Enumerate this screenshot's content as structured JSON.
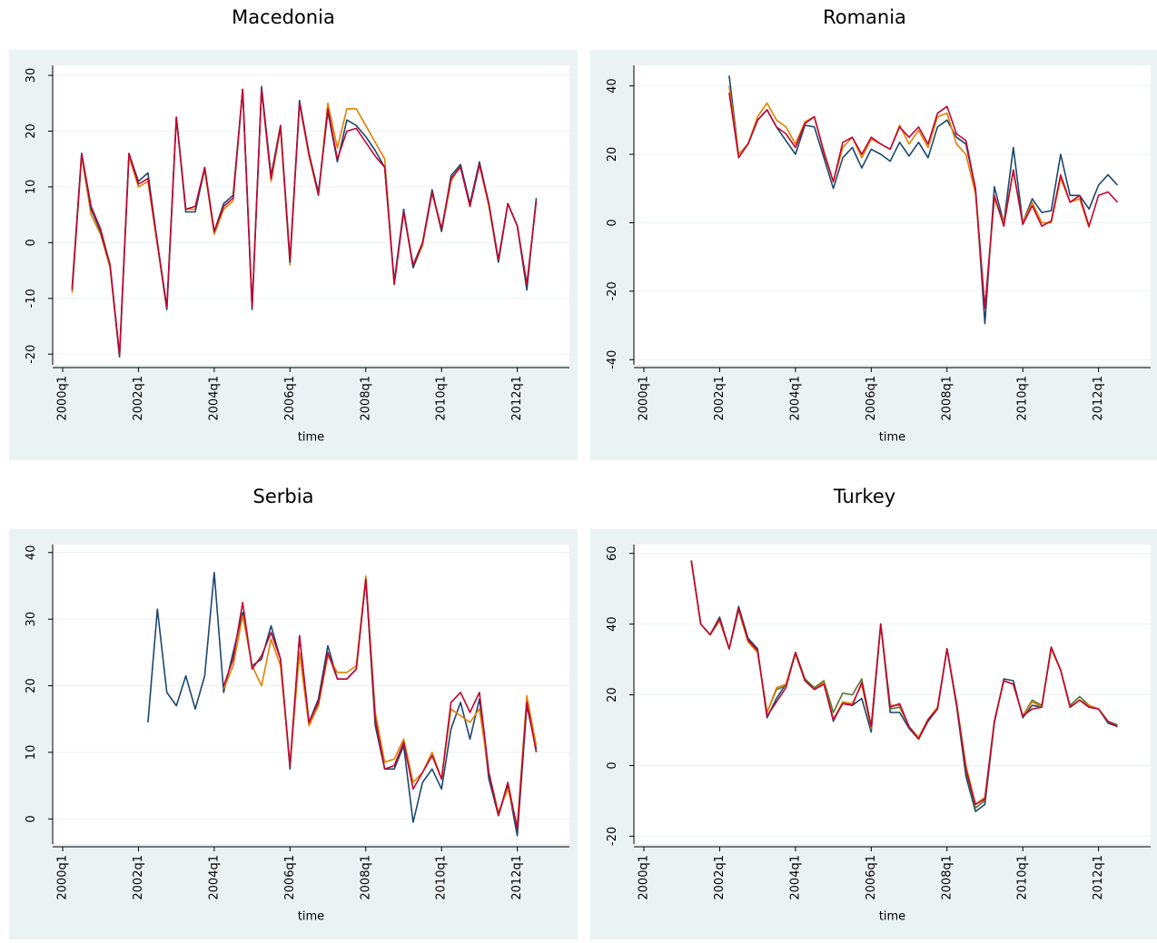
{
  "chart_data": [
    {
      "type": "line",
      "title": "Macedonia",
      "xlabel": "time",
      "x": [
        "2000q1",
        "2000q2",
        "2000q3",
        "2000q4",
        "2001q1",
        "2001q2",
        "2001q3",
        "2001q4",
        "2002q1",
        "2002q2",
        "2002q3",
        "2002q4",
        "2003q1",
        "2003q2",
        "2003q3",
        "2003q4",
        "2004q1",
        "2004q2",
        "2004q3",
        "2004q4",
        "2005q1",
        "2005q2",
        "2005q3",
        "2005q4",
        "2006q1",
        "2006q2",
        "2006q3",
        "2006q4",
        "2007q1",
        "2007q2",
        "2007q3",
        "2007q4",
        "2008q1",
        "2008q2",
        "2008q3",
        "2008q4",
        "2009q1",
        "2009q2",
        "2009q3",
        "2009q4",
        "2010q1",
        "2010q2",
        "2010q3",
        "2010q4",
        "2011q1",
        "2011q2",
        "2011q3",
        "2011q4",
        "2012q1",
        "2012q2",
        "2012q3"
      ],
      "xticks": [
        "2000q1",
        "2002q1",
        "2004q1",
        "2006q1",
        "2008q1",
        "2010q1",
        "2012q1"
      ],
      "ylim": [
        -21.6,
        31.8
      ],
      "yticks": [
        -20,
        -10,
        0,
        10,
        20,
        30
      ],
      "grid": true,
      "series": [
        {
          "color": "#e37e00",
          "values": [
            null,
            -9,
            15.5,
            5,
            1.5,
            -4.5,
            -20.5,
            15.5,
            10,
            11,
            -0.5,
            -12,
            22.5,
            6,
            6,
            13,
            1.5,
            6,
            7.5,
            27.5,
            -11.5,
            27.5,
            11,
            20.5,
            -4,
            25,
            15.5,
            8.5,
            25,
            17,
            24,
            24,
            21,
            18,
            15,
            -7.5,
            5.5,
            -4.5,
            -0.5,
            9,
            2,
            11,
            14,
            6.5,
            14,
            6.5,
            -3.5,
            7,
            3,
            -7.5,
            7.5
          ]
        },
        {
          "color": "#1a476f",
          "values": [
            null,
            -8,
            16,
            6,
            2,
            -4,
            -20.5,
            16,
            11,
            12.5,
            0,
            -12,
            22.5,
            5.5,
            5.5,
            13.5,
            2,
            7,
            8.5,
            27.5,
            -12,
            28,
            12,
            21,
            -3.5,
            25.5,
            16,
            9,
            23.5,
            14.5,
            22,
            21,
            19,
            16.5,
            13.5,
            -7,
            6,
            -4.5,
            0,
            9.5,
            2,
            12,
            14,
            7,
            14.5,
            7,
            -3.5,
            7,
            3,
            -8.5,
            8
          ]
        },
        {
          "color": "#c10534",
          "values": [
            null,
            -8.5,
            16,
            6.5,
            2.5,
            -4,
            -20,
            16,
            10.5,
            11.5,
            0,
            -11.5,
            22.5,
            6,
            6.5,
            13.5,
            2,
            6.5,
            8,
            27.5,
            -11.5,
            27.5,
            11.5,
            21,
            -3,
            25,
            16,
            8.5,
            24,
            15,
            20,
            20.5,
            18,
            15.5,
            13.5,
            -7.5,
            5.5,
            -4,
            0,
            9,
            2.5,
            11.5,
            13.5,
            6.5,
            14,
            7,
            -3,
            7,
            3,
            -7.5,
            7.5
          ]
        }
      ]
    },
    {
      "type": "line",
      "title": "Romania",
      "xlabel": "time",
      "x": [
        "2000q1",
        "2000q2",
        "2000q3",
        "2000q4",
        "2001q1",
        "2001q2",
        "2001q3",
        "2001q4",
        "2002q1",
        "2002q2",
        "2002q3",
        "2002q4",
        "2003q1",
        "2003q2",
        "2003q3",
        "2003q4",
        "2004q1",
        "2004q2",
        "2004q3",
        "2004q4",
        "2005q1",
        "2005q2",
        "2005q3",
        "2005q4",
        "2006q1",
        "2006q2",
        "2006q3",
        "2006q4",
        "2007q1",
        "2007q2",
        "2007q3",
        "2007q4",
        "2008q1",
        "2008q2",
        "2008q3",
        "2008q4",
        "2009q1",
        "2009q2",
        "2009q3",
        "2009q4",
        "2010q1",
        "2010q2",
        "2010q3",
        "2010q4",
        "2011q1",
        "2011q2",
        "2011q3",
        "2011q4",
        "2012q1",
        "2012q2",
        "2012q3"
      ],
      "xticks": [
        "2000q1",
        "2002q1",
        "2004q1",
        "2006q1",
        "2008q1",
        "2010q1",
        "2012q1"
      ],
      "ylim": [
        -41,
        46
      ],
      "yticks": [
        -40,
        -20,
        0,
        20,
        40
      ],
      "grid": true,
      "series": [
        {
          "color": "#1a476f",
          "values": [
            null,
            null,
            null,
            null,
            null,
            null,
            null,
            null,
            null,
            43,
            20,
            23,
            30,
            33,
            28,
            24,
            20,
            28.5,
            28,
            19,
            10,
            19,
            22,
            16,
            21.5,
            20,
            18,
            23.5,
            19.5,
            23.5,
            19,
            28,
            30,
            25,
            23,
            10,
            -29.5,
            10.5,
            0,
            22,
            0,
            7,
            3,
            3.5,
            20,
            8,
            8,
            4,
            11,
            14,
            11
          ]
        },
        {
          "color": "#e37e00",
          "values": [
            null,
            null,
            null,
            null,
            null,
            null,
            null,
            null,
            null,
            40,
            20,
            23,
            31,
            35,
            30,
            28,
            23,
            29.5,
            31,
            21,
            12,
            22,
            25,
            19,
            24.5,
            23,
            21.5,
            28.5,
            23,
            27,
            22,
            31,
            32,
            23,
            20,
            8.5,
            -25,
            7,
            0,
            15,
            0,
            6,
            0,
            0,
            13,
            6,
            7,
            -1.5,
            null,
            null,
            null
          ]
        },
        {
          "color": "#c10534",
          "values": [
            null,
            null,
            null,
            null,
            null,
            null,
            null,
            null,
            null,
            38,
            19,
            23,
            30,
            33,
            28,
            26,
            22,
            29,
            31,
            20.5,
            12,
            23.5,
            25,
            20,
            25,
            23,
            21.5,
            28,
            25,
            28,
            23,
            32,
            34,
            26,
            24,
            10,
            -25,
            8,
            -1,
            15.5,
            -0.5,
            5,
            -1,
            0.5,
            14,
            6,
            8,
            -1,
            8,
            9,
            6
          ]
        }
      ]
    },
    {
      "type": "line",
      "title": "Serbia",
      "xlabel": "time",
      "x": [
        "2000q1",
        "2000q2",
        "2000q3",
        "2000q4",
        "2001q1",
        "2001q2",
        "2001q3",
        "2001q4",
        "2002q1",
        "2002q2",
        "2002q3",
        "2002q4",
        "2003q1",
        "2003q2",
        "2003q3",
        "2003q4",
        "2004q1",
        "2004q2",
        "2004q3",
        "2004q4",
        "2005q1",
        "2005q2",
        "2005q3",
        "2005q4",
        "2006q1",
        "2006q2",
        "2006q3",
        "2006q4",
        "2007q1",
        "2007q2",
        "2007q3",
        "2007q4",
        "2008q1",
        "2008q2",
        "2008q3",
        "2008q4",
        "2009q1",
        "2009q2",
        "2009q3",
        "2009q4",
        "2010q1",
        "2010q2",
        "2010q3",
        "2010q4",
        "2011q1",
        "2011q2",
        "2011q3",
        "2011q4",
        "2012q1",
        "2012q2",
        "2012q3"
      ],
      "xticks": [
        "2000q1",
        "2002q1",
        "2004q1",
        "2006q1",
        "2008q1",
        "2010q1",
        "2012q1"
      ],
      "ylim": [
        -3.5,
        41.2
      ],
      "yticks": [
        0,
        10,
        20,
        30,
        40
      ],
      "grid": true,
      "series": [
        {
          "color": "#1a476f",
          "values": [
            null,
            null,
            null,
            null,
            null,
            null,
            null,
            null,
            null,
            14.5,
            31.5,
            19,
            17,
            21.5,
            16.5,
            21.5,
            37,
            19,
            25,
            31,
            23,
            24,
            29,
            24,
            7.5,
            27.5,
            14.5,
            18,
            26,
            21,
            21,
            22.5,
            36,
            14,
            7.5,
            7.5,
            11,
            -0.5,
            5.5,
            7.5,
            4.5,
            13.5,
            17.5,
            12,
            18,
            6,
            0.5,
            5,
            -2.5,
            17,
            10.5
          ]
        },
        {
          "color": "#e37e00",
          "values": [
            null,
            null,
            null,
            null,
            null,
            null,
            null,
            null,
            null,
            null,
            null,
            null,
            null,
            null,
            null,
            null,
            null,
            19.5,
            23,
            30.5,
            23,
            20,
            27,
            23,
            8,
            25,
            14,
            17,
            24.5,
            22,
            22,
            23,
            36.5,
            16,
            8.5,
            9,
            12,
            5.5,
            7,
            10,
            6,
            16.5,
            15.5,
            14.5,
            16.5,
            7,
            1,
            4.5,
            -1,
            18.5,
            11
          ]
        },
        {
          "color": "#c10534",
          "values": [
            null,
            null,
            null,
            null,
            null,
            null,
            null,
            null,
            null,
            null,
            null,
            null,
            null,
            null,
            null,
            null,
            null,
            20,
            24,
            32.5,
            22.5,
            24.5,
            28,
            24,
            8,
            27.5,
            14.5,
            17.5,
            25,
            21,
            21,
            22.5,
            36,
            15,
            7.5,
            8,
            11.5,
            4.5,
            7,
            9.5,
            6,
            17.5,
            19,
            16,
            19,
            7,
            0.5,
            5.5,
            -1.5,
            17.5,
            10
          ]
        }
      ]
    },
    {
      "type": "line",
      "title": "Turkey",
      "xlabel": "time",
      "x": [
        "2000q1",
        "2000q2",
        "2000q3",
        "2000q4",
        "2001q1",
        "2001q2",
        "2001q3",
        "2001q4",
        "2002q1",
        "2002q2",
        "2002q3",
        "2002q4",
        "2003q1",
        "2003q2",
        "2003q3",
        "2003q4",
        "2004q1",
        "2004q2",
        "2004q3",
        "2004q4",
        "2005q1",
        "2005q2",
        "2005q3",
        "2005q4",
        "2006q1",
        "2006q2",
        "2006q3",
        "2006q4",
        "2007q1",
        "2007q2",
        "2007q3",
        "2007q4",
        "2008q1",
        "2008q2",
        "2008q3",
        "2008q4",
        "2009q1",
        "2009q2",
        "2009q3",
        "2009q4",
        "2010q1",
        "2010q2",
        "2010q3",
        "2010q4",
        "2011q1",
        "2011q2",
        "2011q3",
        "2011q4",
        "2012q1",
        "2012q2",
        "2012q3"
      ],
      "xticks": [
        "2000q1",
        "2002q1",
        "2004q1",
        "2006q1",
        "2008q1",
        "2010q1",
        "2012q1"
      ],
      "ylim": [
        -21.7,
        62.5
      ],
      "yticks": [
        -20,
        0,
        20,
        40,
        60
      ],
      "grid": true,
      "series": [
        {
          "color": "#1a476f",
          "values": [
            null,
            null,
            null,
            null,
            null,
            58,
            40,
            37,
            42,
            33,
            45,
            36,
            33,
            13.5,
            19,
            23,
            32,
            24.5,
            22,
            23.5,
            12.5,
            18,
            17,
            19,
            9.5,
            40,
            15,
            15,
            10.5,
            7.5,
            12.5,
            16,
            33,
            17,
            -3,
            -13,
            -11,
            12,
            24.5,
            24,
            13.5,
            17,
            16.5,
            33.5,
            27,
            16.5,
            18.5,
            16.5,
            16,
            12,
            11
          ]
        },
        {
          "color": "#55752f",
          "values": [
            null,
            null,
            null,
            null,
            null,
            58,
            40,
            37,
            41,
            33,
            44,
            35,
            32,
            15,
            21.5,
            22.5,
            32,
            24.5,
            22,
            24,
            15,
            20.5,
            20,
            24.5,
            11,
            40,
            16,
            16.5,
            11,
            7.5,
            13,
            16.5,
            33,
            17.5,
            -1.5,
            -12,
            -10,
            12.5,
            24,
            23,
            14,
            18.5,
            17,
            33,
            27,
            17,
            19.5,
            17,
            16,
            12.5,
            11.5
          ]
        },
        {
          "color": "#e37e00",
          "values": [
            null,
            null,
            null,
            null,
            null,
            58,
            40,
            37,
            41,
            33,
            44,
            35,
            32,
            15,
            22,
            23,
            31.5,
            24,
            21.5,
            23.5,
            13,
            18,
            17.5,
            23,
            10.5,
            40,
            17,
            17,
            11,
            8,
            13,
            16.5,
            33,
            18,
            0,
            -11,
            -9,
            12.5,
            24,
            23,
            14,
            18,
            16.5,
            33,
            27,
            16.5,
            18.5,
            17,
            16,
            12.5,
            11
          ]
        },
        {
          "color": "#c10534",
          "values": [
            null,
            null,
            null,
            null,
            null,
            58,
            40,
            37,
            41.5,
            33,
            44.5,
            35.5,
            32.5,
            14,
            18,
            22,
            32,
            24,
            21.5,
            23,
            13,
            17.5,
            17,
            23.5,
            11,
            40,
            16.5,
            17.5,
            11,
            7.5,
            13,
            16,
            33,
            17.5,
            -1,
            -11,
            -9.5,
            12.5,
            24,
            23,
            14,
            16,
            16.5,
            33.5,
            27,
            16.5,
            18.5,
            16.5,
            16,
            12.5,
            11
          ]
        }
      ]
    }
  ]
}
